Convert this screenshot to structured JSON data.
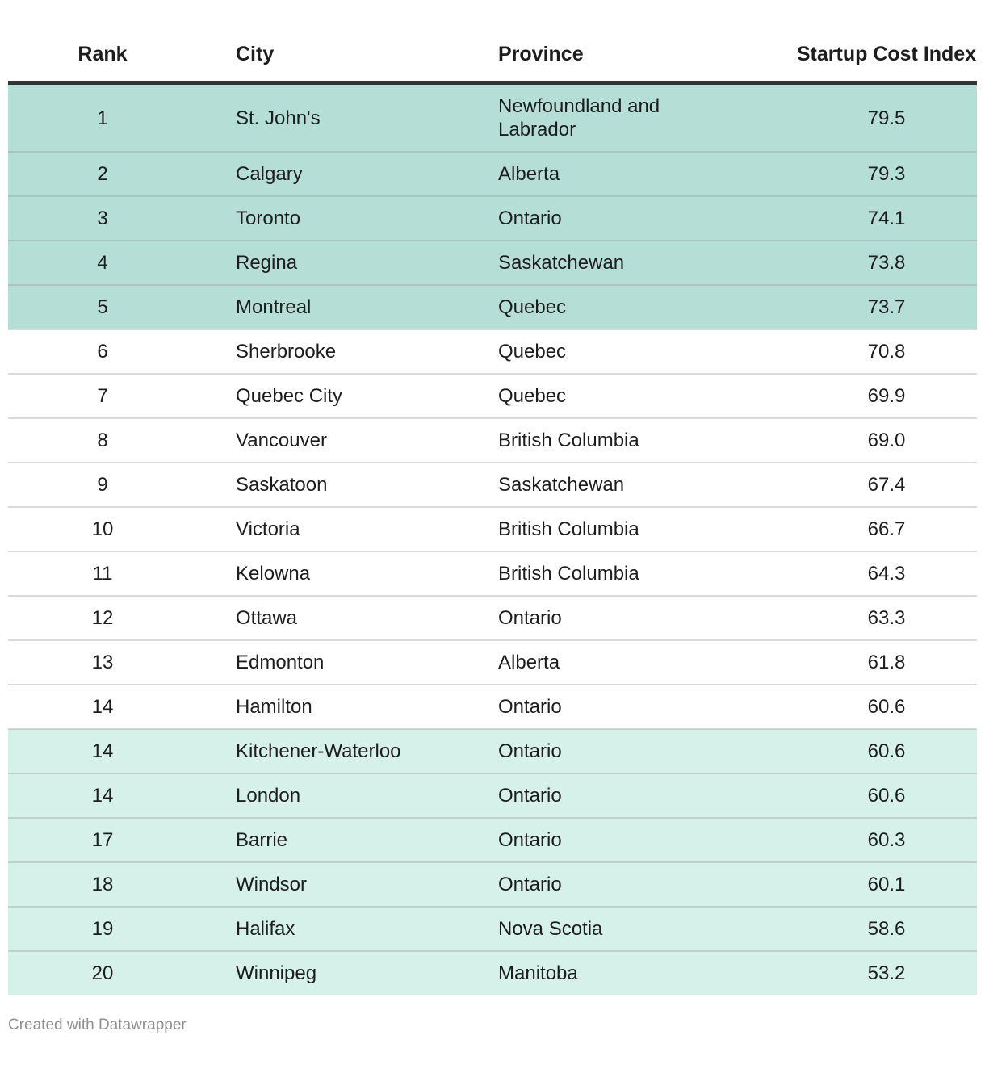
{
  "chart_data": {
    "type": "table",
    "columns": [
      "Rank",
      "City",
      "Province",
      "Startup Cost Index"
    ],
    "rows": [
      [
        "1",
        "St. John's",
        "Newfoundland and Labrador",
        "79.5"
      ],
      [
        "2",
        "Calgary",
        "Alberta",
        "79.3"
      ],
      [
        "3",
        "Toronto",
        "Ontario",
        "74.1"
      ],
      [
        "4",
        "Regina",
        "Saskatchewan",
        "73.8"
      ],
      [
        "5",
        "Montreal",
        "Quebec",
        "73.7"
      ],
      [
        "6",
        "Sherbrooke",
        "Quebec",
        "70.8"
      ],
      [
        "7",
        "Quebec City",
        "Quebec",
        "69.9"
      ],
      [
        "8",
        "Vancouver",
        "British Columbia",
        "69.0"
      ],
      [
        "9",
        "Saskatoon",
        "Saskatchewan",
        "67.4"
      ],
      [
        "10",
        "Victoria",
        "British Columbia",
        "66.7"
      ],
      [
        "11",
        "Kelowna",
        "British Columbia",
        "64.3"
      ],
      [
        "12",
        "Ottawa",
        "Ontario",
        "63.3"
      ],
      [
        "13",
        "Edmonton",
        "Alberta",
        "61.8"
      ],
      [
        "14",
        "Hamilton",
        "Ontario",
        "60.6"
      ],
      [
        "14",
        "Kitchener-Waterloo",
        "Ontario",
        "60.6"
      ],
      [
        "14",
        "London",
        "Ontario",
        "60.6"
      ],
      [
        "17",
        "Barrie",
        "Ontario",
        "60.3"
      ],
      [
        "18",
        "Windsor",
        "Ontario",
        "60.1"
      ],
      [
        "19",
        "Halifax",
        "Nova Scotia",
        "58.6"
      ],
      [
        "20",
        "Winnipeg",
        "Manitoba",
        "53.2"
      ]
    ],
    "row_highlight": [
      "dark",
      "dark",
      "dark",
      "dark",
      "dark",
      "none",
      "none",
      "none",
      "none",
      "none",
      "none",
      "none",
      "none",
      "none",
      "light",
      "light",
      "light",
      "light",
      "light",
      "light"
    ],
    "layout_hints": {
      "column_alignments": [
        "center",
        "left",
        "left",
        "center"
      ],
      "grid": "horizontal dividers only",
      "header_rule": "thick dark bottom border"
    }
  },
  "footer": {
    "attribution": "Created with Datawrapper"
  },
  "colors": {
    "top_group_bg": "#b5ded6",
    "bottom_group_bg": "#d6f0ea",
    "header_rule": "#333333",
    "row_divider": "rgba(150,150,150,0.35)",
    "text": "#1d1d1d",
    "footer_text": "#8f8f8f",
    "page_bg": "#ffffff"
  }
}
